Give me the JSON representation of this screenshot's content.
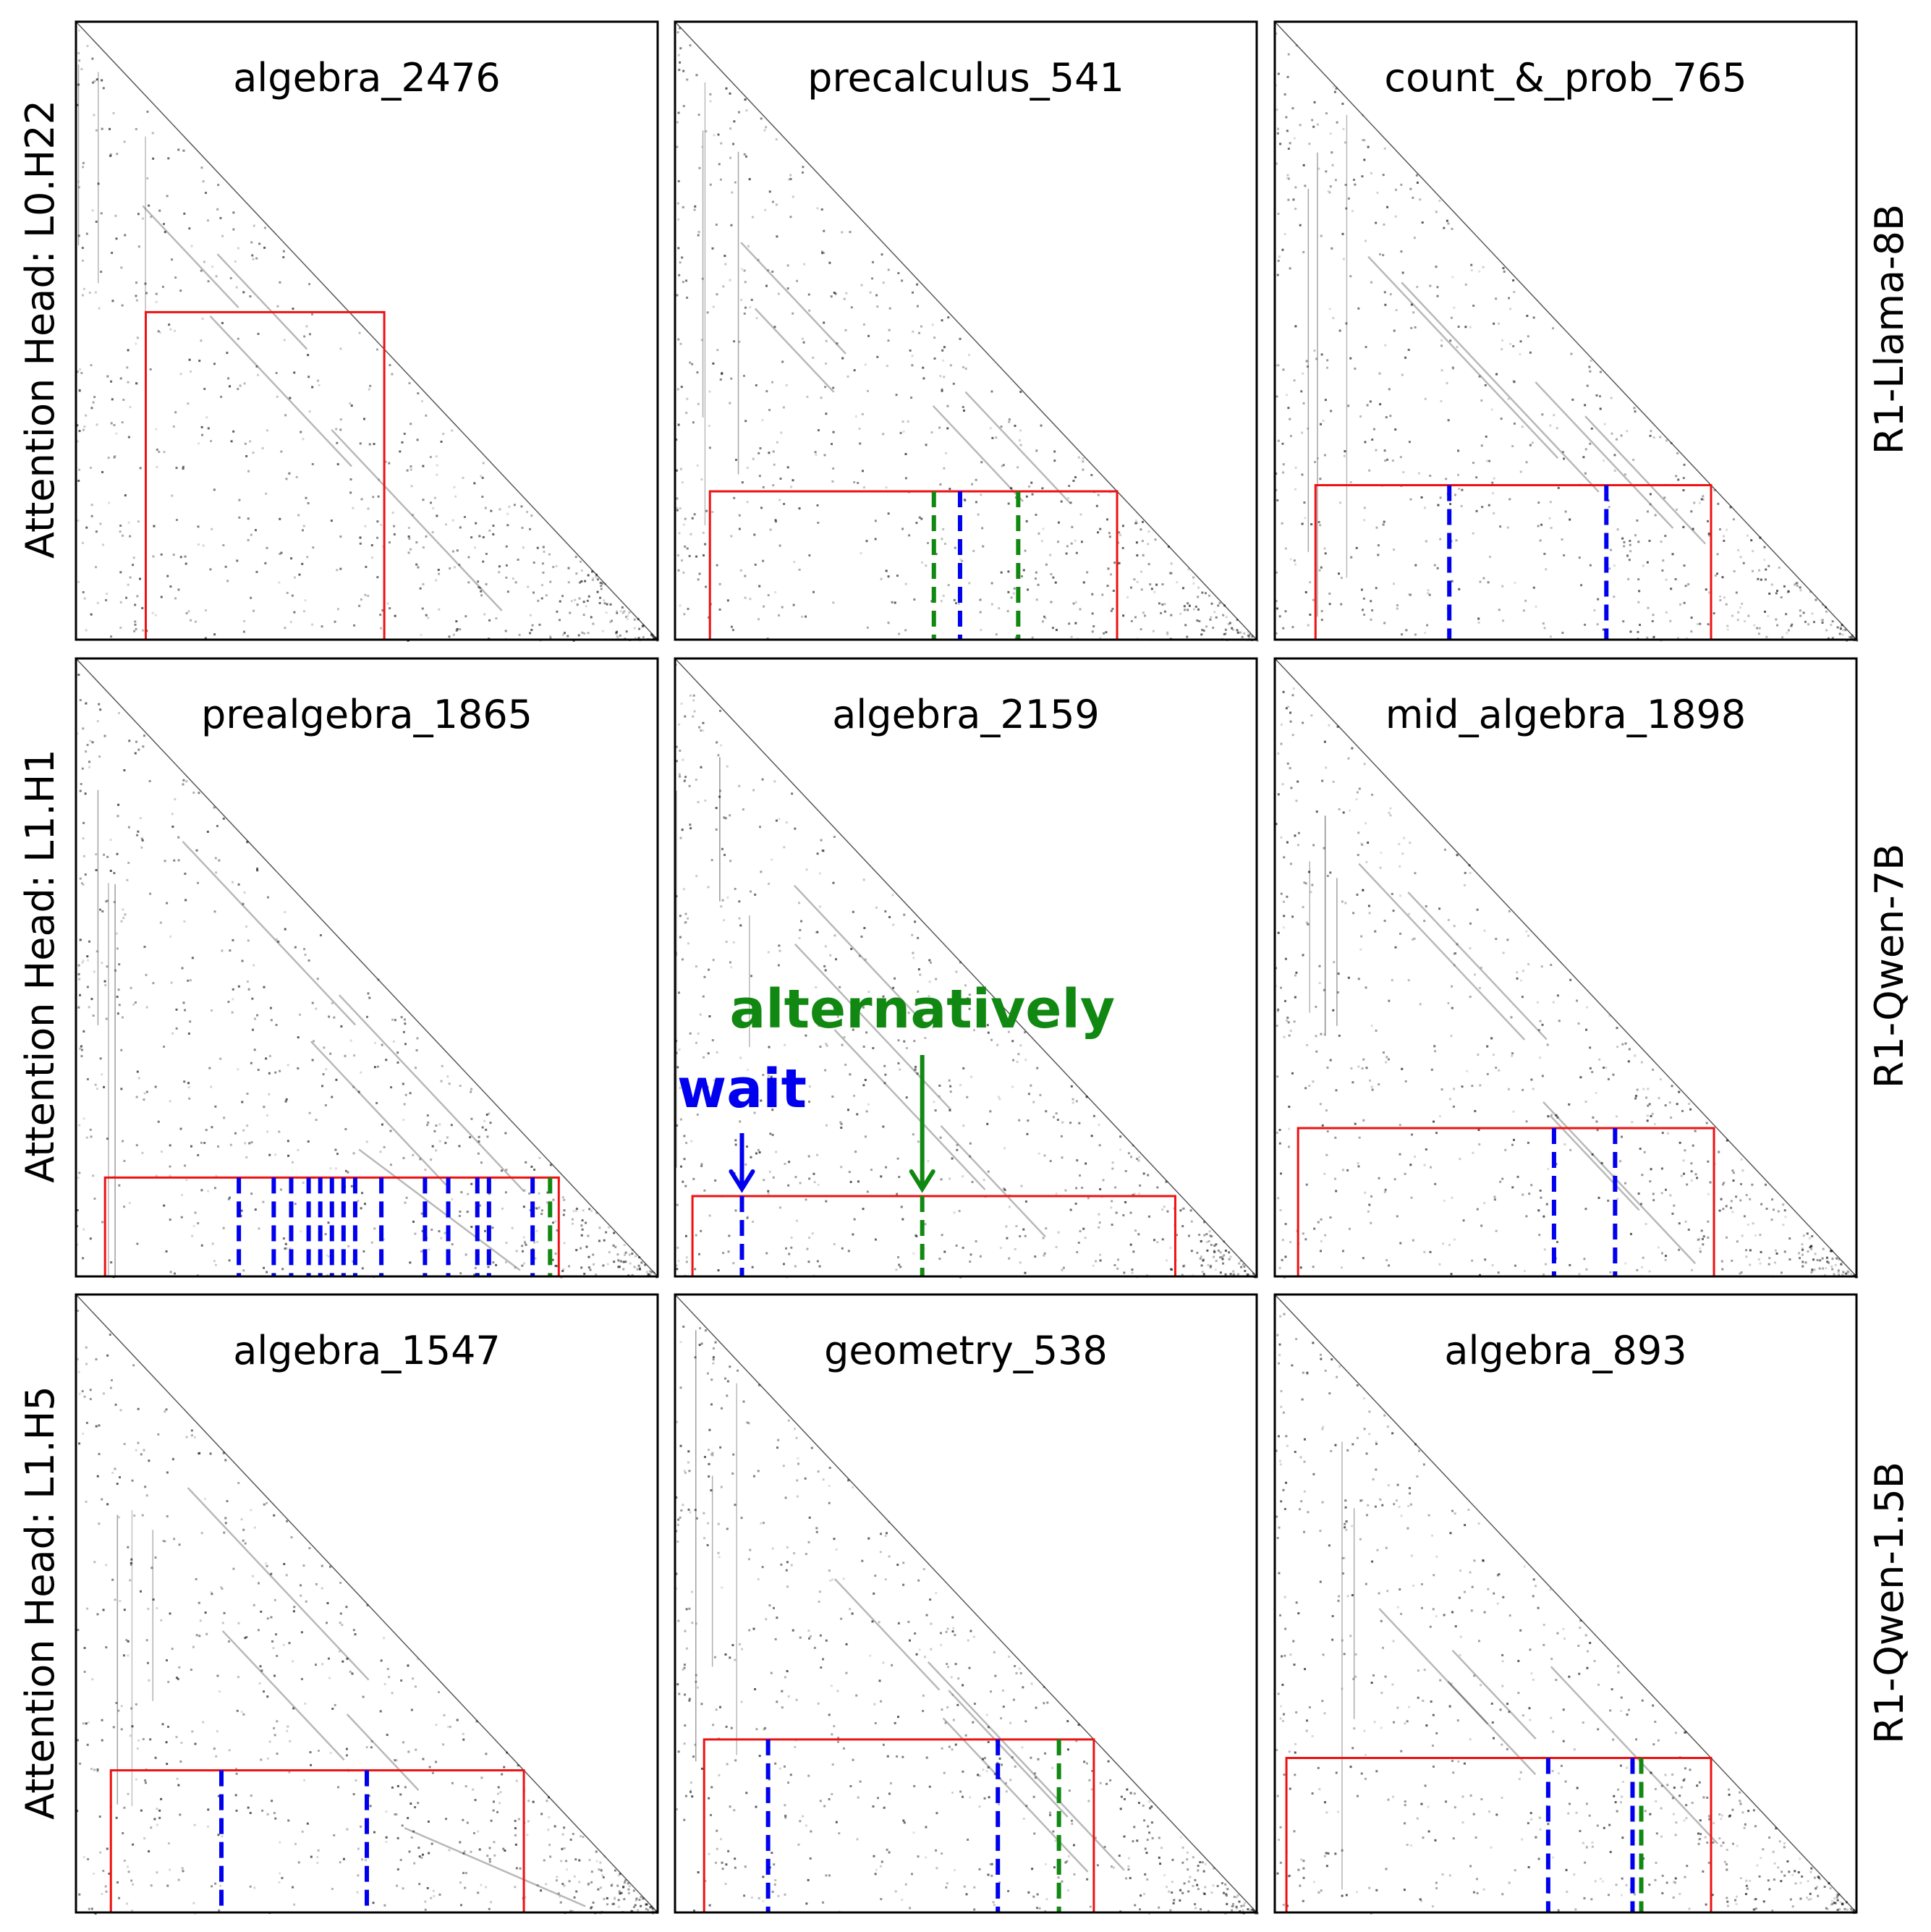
{
  "colors": {
    "region_box": "#ee1111",
    "wait": "#0000ee",
    "alternatively": "#118811",
    "attention": "#000000"
  },
  "chart_data": {
    "type": "heatmap",
    "grid": false,
    "row_labels_left": [
      "Attention Head: L0.H22",
      "Attention Head: L1.H1",
      "Attention Head: L1.H5"
    ],
    "row_labels_right": [
      "R1-Llama-8B",
      "R1-Qwen-7B",
      "R1-Qwen-1.5B"
    ],
    "legend": {
      "wait": "wait",
      "alternatively": "alternatively"
    },
    "panels": [
      {
        "title": "algebra_2476",
        "region": {
          "x": [
            0.12,
            0.53
          ],
          "y": [
            0.47,
            1.0
          ]
        },
        "markers": []
      },
      {
        "title": "precalculus_541",
        "region": {
          "x": [
            0.06,
            0.76
          ],
          "y": [
            0.76,
            1.0
          ]
        },
        "markers": [
          {
            "type": "alternatively",
            "x": 0.445
          },
          {
            "type": "wait",
            "x": 0.49
          },
          {
            "type": "alternatively",
            "x": 0.59
          }
        ]
      },
      {
        "title": "count_&_prob_765",
        "region": {
          "x": [
            0.07,
            0.75
          ],
          "y": [
            0.75,
            1.0
          ]
        },
        "markers": [
          {
            "type": "wait",
            "x": 0.3
          },
          {
            "type": "wait",
            "x": 0.57
          }
        ]
      },
      {
        "title": "prealgebra_1865",
        "region": {
          "x": [
            0.05,
            0.83
          ],
          "y": [
            0.84,
            1.0
          ]
        },
        "markers": [
          {
            "type": "wait",
            "x": 0.28
          },
          {
            "type": "wait",
            "x": 0.34
          },
          {
            "type": "wait",
            "x": 0.37
          },
          {
            "type": "wait",
            "x": 0.4
          },
          {
            "type": "wait",
            "x": 0.42
          },
          {
            "type": "wait",
            "x": 0.44
          },
          {
            "type": "wait",
            "x": 0.46
          },
          {
            "type": "wait",
            "x": 0.48
          },
          {
            "type": "wait",
            "x": 0.525
          },
          {
            "type": "wait",
            "x": 0.6
          },
          {
            "type": "wait",
            "x": 0.64
          },
          {
            "type": "wait",
            "x": 0.69
          },
          {
            "type": "wait",
            "x": 0.71
          },
          {
            "type": "wait",
            "x": 0.785
          },
          {
            "type": "alternatively",
            "x": 0.815
          }
        ]
      },
      {
        "title": "algebra_2159",
        "region": {
          "x": [
            0.03,
            0.86
          ],
          "y": [
            0.87,
            1.0
          ]
        },
        "markers": [
          {
            "type": "wait",
            "x": 0.115
          },
          {
            "type": "alternatively",
            "x": 0.425
          }
        ],
        "annotations": [
          {
            "label": "wait",
            "type": "wait",
            "x": 0.115
          },
          {
            "label": "alternatively",
            "type": "alternatively",
            "x": 0.425
          }
        ]
      },
      {
        "title": "mid_algebra_1898",
        "region": {
          "x": [
            0.04,
            0.755
          ],
          "y": [
            0.76,
            1.0
          ]
        },
        "markers": [
          {
            "type": "wait",
            "x": 0.48
          },
          {
            "type": "wait",
            "x": 0.585
          }
        ]
      },
      {
        "title": "algebra_1547",
        "region": {
          "x": [
            0.06,
            0.77
          ],
          "y": [
            0.77,
            1.0
          ]
        },
        "markers": [
          {
            "type": "wait",
            "x": 0.25
          },
          {
            "type": "wait",
            "x": 0.5
          }
        ]
      },
      {
        "title": "geometry_538",
        "region": {
          "x": [
            0.05,
            0.72
          ],
          "y": [
            0.72,
            1.0
          ]
        },
        "markers": [
          {
            "type": "wait",
            "x": 0.16
          },
          {
            "type": "wait",
            "x": 0.555
          },
          {
            "type": "alternatively",
            "x": 0.66
          }
        ]
      },
      {
        "title": "algebra_893",
        "region": {
          "x": [
            0.02,
            0.75
          ],
          "y": [
            0.75,
            1.0
          ]
        },
        "markers": [
          {
            "type": "wait",
            "x": 0.47
          },
          {
            "type": "wait",
            "x": 0.615
          },
          {
            "type": "alternatively",
            "x": 0.63
          }
        ]
      }
    ]
  }
}
